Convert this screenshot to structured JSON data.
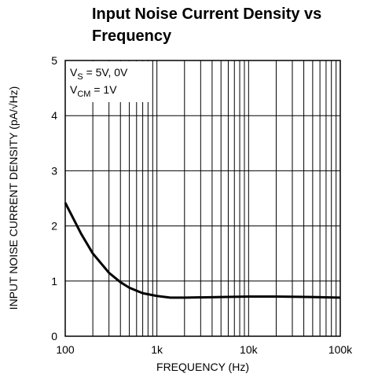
{
  "chart_data": {
    "type": "line",
    "title": [
      "Input Noise Current Density vs",
      "Frequency"
    ],
    "annotation": [
      {
        "main": "V",
        "sub": "S",
        "rest": " = 5V, 0V"
      },
      {
        "main": "V",
        "sub": "CM",
        "rest": " = 1V"
      }
    ],
    "x_label": "FREQUENCY (Hz)",
    "y_label": "INPUT NOISE CURRENT DENSITY (pA/√Hz)",
    "x": [
      100,
      150,
      200,
      300,
      400,
      500,
      700,
      1000,
      1400,
      2000,
      5000,
      10000,
      20000,
      50000,
      100000
    ],
    "series": [
      {
        "color": "#000000",
        "values": [
          2.42,
          1.85,
          1.5,
          1.15,
          0.98,
          0.88,
          0.78,
          0.73,
          0.7,
          0.7,
          0.71,
          0.72,
          0.72,
          0.71,
          0.7
        ]
      }
    ],
    "xscale": "log",
    "xlim": [
      100,
      100000
    ],
    "xticks": [
      100,
      {
        "value": 1000,
        "label": "1k"
      },
      {
        "value": 10000,
        "label": "10k"
      },
      {
        "value": 100000,
        "label": "100k"
      }
    ],
    "xminorticks": [
      200,
      300,
      400,
      500,
      600,
      700,
      800,
      900,
      2000,
      3000,
      4000,
      5000,
      6000,
      7000,
      8000,
      9000,
      20000,
      30000,
      40000,
      50000,
      60000,
      70000,
      80000,
      90000
    ],
    "ylim": [
      0,
      5
    ],
    "yticks": [
      0,
      1,
      2,
      3,
      4,
      5
    ],
    "grid": true
  }
}
